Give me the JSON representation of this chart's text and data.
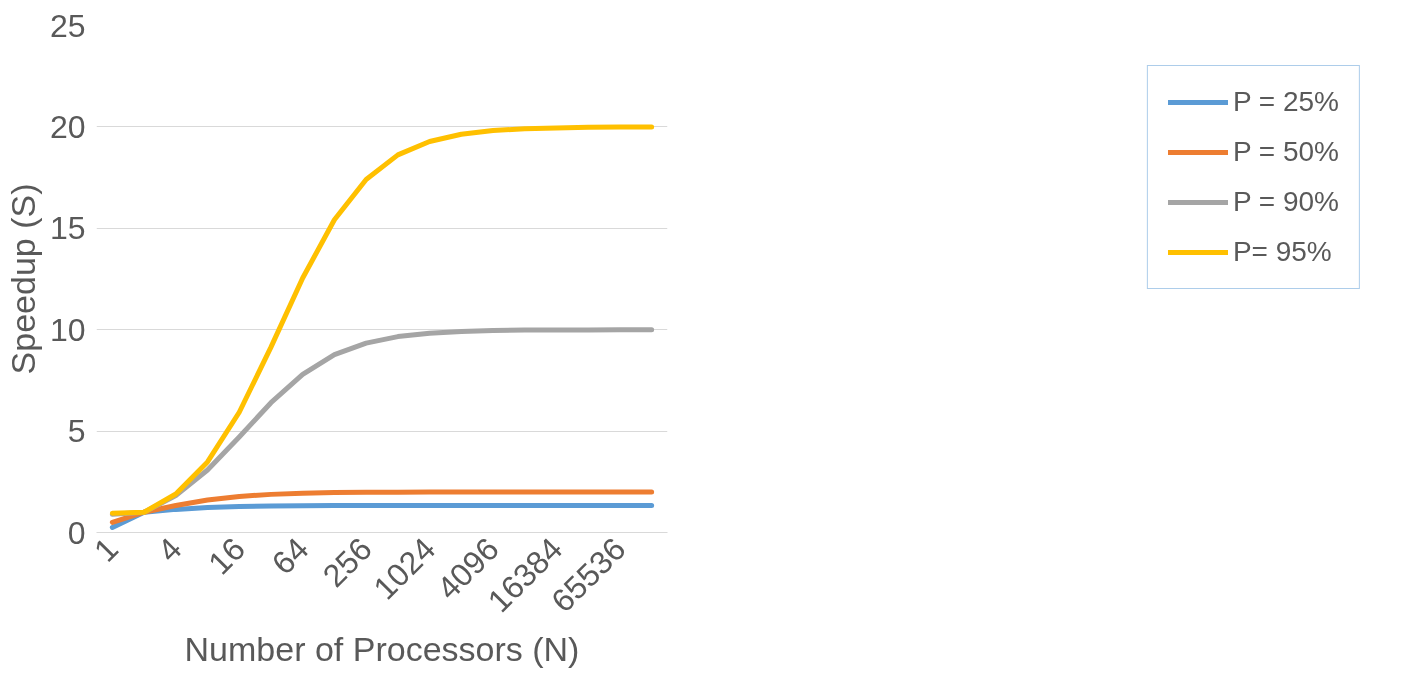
{
  "chart_data": {
    "type": "line",
    "xlabel": "Number of Processors (N)",
    "ylabel": "Speedup (S)",
    "categories": [
      "1",
      null,
      "4",
      null,
      "16",
      null,
      "64",
      null,
      "256",
      null,
      "1024",
      null,
      "4096",
      null,
      "16384",
      null,
      "65536",
      null
    ],
    "series": [
      {
        "name": "P = 25%",
        "color": "#5b9bd5",
        "values": [
          0.25,
          1.0,
          1.14,
          1.23,
          1.28,
          1.31,
          1.32,
          1.33,
          1.33,
          1.33,
          1.33,
          1.33,
          1.33,
          1.33,
          1.33,
          1.33,
          1.33,
          1.33
        ]
      },
      {
        "name": "P = 50%",
        "color": "#ed7d31",
        "values": [
          0.5,
          1.0,
          1.33,
          1.6,
          1.78,
          1.88,
          1.94,
          1.97,
          1.98,
          1.99,
          2.0,
          2.0,
          2.0,
          2.0,
          2.0,
          2.0,
          2.0,
          2.0
        ]
      },
      {
        "name": "P = 90%",
        "color": "#a5a5a5",
        "values": [
          0.9,
          1.0,
          1.82,
          3.08,
          4.71,
          6.4,
          7.8,
          8.77,
          9.34,
          9.66,
          9.83,
          9.91,
          9.96,
          9.98,
          9.99,
          9.99,
          10.0,
          10.0
        ]
      },
      {
        "name": "P= 95%",
        "color": "#ffc000",
        "values": [
          0.95,
          1.0,
          1.9,
          3.48,
          5.93,
          9.14,
          12.55,
          15.42,
          17.41,
          18.62,
          19.28,
          19.64,
          19.82,
          19.91,
          19.95,
          19.98,
          19.99,
          19.99
        ]
      }
    ],
    "ylim": [
      0,
      25
    ],
    "yticks": [
      0,
      5,
      10,
      15,
      20,
      25
    ],
    "grid": "y",
    "legend": "right",
    "marker": "none",
    "line_style": "solid"
  }
}
